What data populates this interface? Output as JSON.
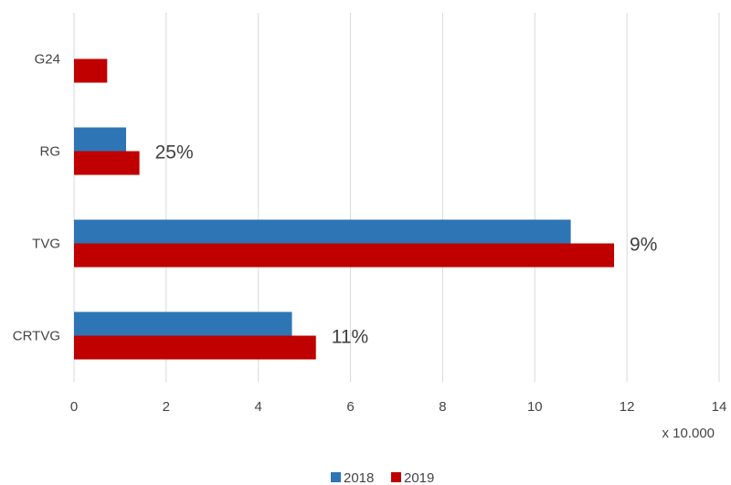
{
  "chart_data": {
    "type": "bar",
    "orientation": "horizontal",
    "categories": [
      "G24",
      "RG",
      "TVG",
      "CRTVG"
    ],
    "series": [
      {
        "name": "2018",
        "color": "#2e75b6",
        "values": [
          null,
          1.13,
          10.78,
          4.73
        ]
      },
      {
        "name": "2019",
        "color": "#c00000",
        "values": [
          0.72,
          1.42,
          11.72,
          5.25
        ]
      }
    ],
    "annotations": [
      {
        "category": "G24",
        "text": ""
      },
      {
        "category": "RG",
        "text": "25%"
      },
      {
        "category": "TVG",
        "text": "9%"
      },
      {
        "category": "CRTVG",
        "text": "11%"
      }
    ],
    "xlim": [
      0,
      14
    ],
    "xticks": [
      0,
      2,
      4,
      6,
      8,
      10,
      12,
      14
    ],
    "x_unit_label": "x 10.000",
    "grid": true,
    "legend_position": "bottom"
  }
}
